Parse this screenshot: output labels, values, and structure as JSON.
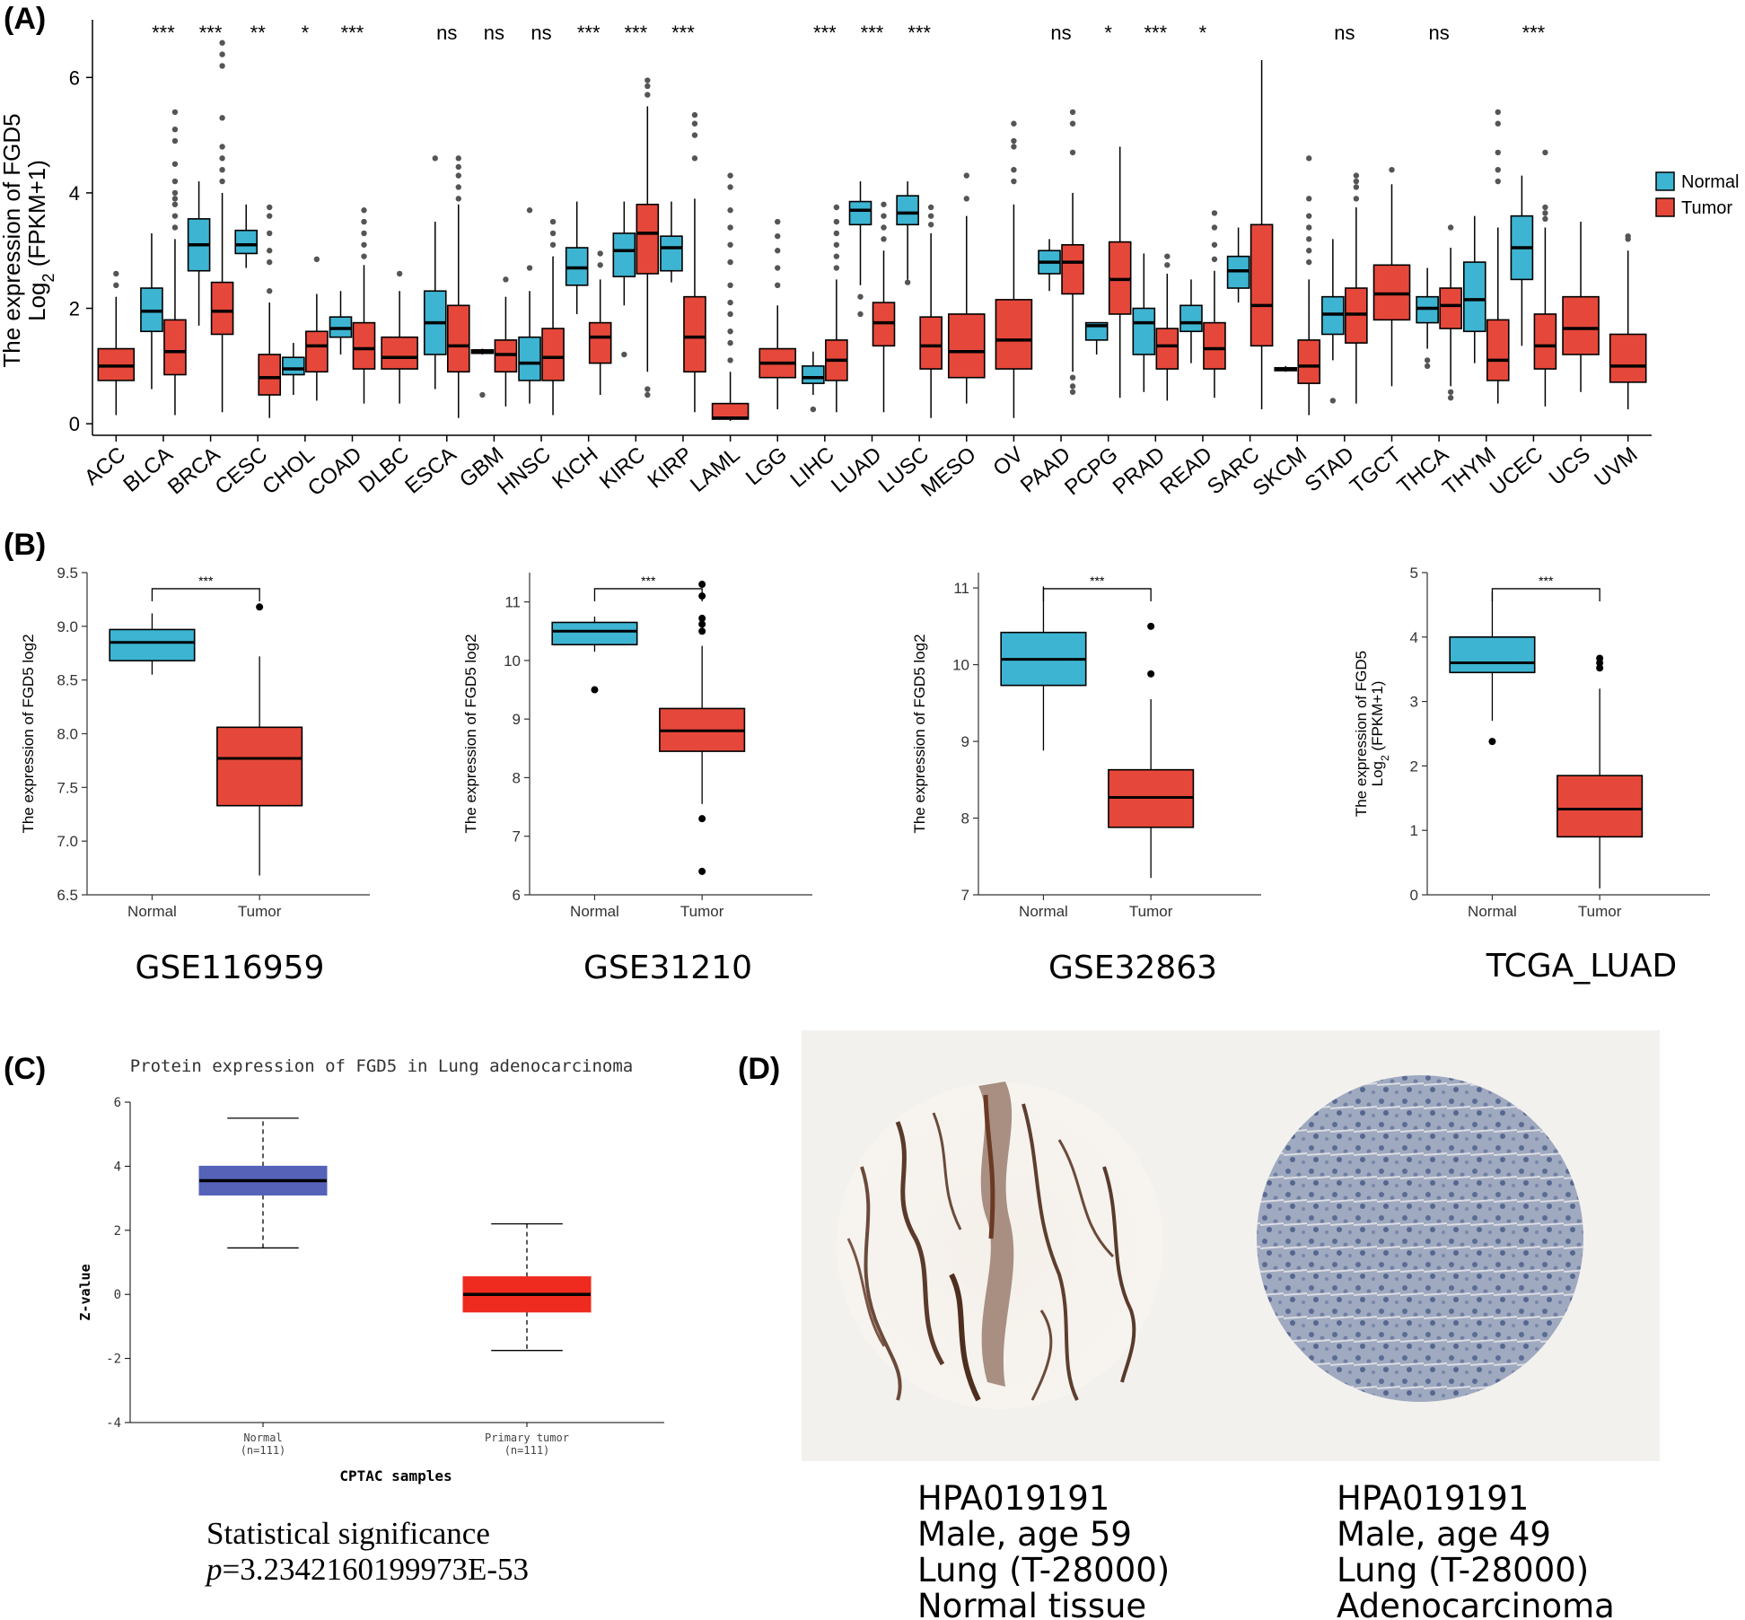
{
  "panels": {
    "A": "(A)",
    "B": "(B)",
    "C": "(C)",
    "D": "(D)"
  },
  "colors": {
    "normal": "#3db4d2",
    "tumor": "#e5483a",
    "cptac_normal": "#5562b8",
    "cptac_tumor": "#ee2b1e"
  },
  "chart_data": [
    {
      "id": "A",
      "type": "boxplot",
      "ylabel_line1": "The expression of FGD5",
      "ylabel_line2_main": "Log",
      "ylabel_line2_sub": "2",
      "ylabel_line2_rest": " (FPKM+1)",
      "ylim": [
        -0.2,
        7
      ],
      "yticks": [
        0,
        2,
        4,
        6
      ],
      "legend": {
        "items": [
          "Normal",
          "Tumor"
        ],
        "placement": "right"
      },
      "categories": [
        {
          "name": "ACC",
          "sig": "",
          "normal": null,
          "tumor": [
            0.15,
            0.75,
            1.0,
            1.3,
            2.2
          ],
          "tumor_out": [
            2.4,
            2.6
          ]
        },
        {
          "name": "BLCA",
          "sig": "***",
          "normal": [
            0.6,
            1.6,
            1.95,
            2.35,
            3.3
          ],
          "normal_out": [],
          "tumor": [
            0.15,
            0.85,
            1.25,
            1.8,
            3.2
          ],
          "tumor_out": [
            3.4,
            3.6,
            3.8,
            3.9,
            4.0,
            4.2,
            4.5,
            4.9,
            5.1,
            5.4
          ]
        },
        {
          "name": "BRCA",
          "sig": "***",
          "normal": [
            1.7,
            2.65,
            3.1,
            3.55,
            4.2
          ],
          "normal_out": [],
          "tumor": [
            0.2,
            1.55,
            1.95,
            2.45,
            4.0
          ],
          "tumor_out": [
            4.2,
            4.4,
            4.6,
            4.8,
            5.3,
            6.2,
            6.4,
            6.6
          ]
        },
        {
          "name": "CESC",
          "sig": "**",
          "normal": [
            2.7,
            2.95,
            3.1,
            3.35,
            3.8
          ],
          "normal_out": [],
          "tumor": [
            0.1,
            0.5,
            0.8,
            1.2,
            2.1
          ],
          "tumor_out": [
            2.3,
            2.8,
            3.0,
            3.3,
            3.6,
            3.75
          ]
        },
        {
          "name": "CHOL",
          "sig": "*",
          "normal": [
            0.5,
            0.85,
            0.95,
            1.15,
            1.4
          ],
          "normal_out": [],
          "tumor": [
            0.4,
            0.9,
            1.35,
            1.6,
            2.25
          ],
          "tumor_out": [
            2.85
          ]
        },
        {
          "name": "COAD",
          "sig": "***",
          "normal": [
            1.2,
            1.5,
            1.65,
            1.85,
            2.3
          ],
          "normal_out": [],
          "tumor": [
            0.35,
            0.95,
            1.3,
            1.75,
            2.75
          ],
          "tumor_out": [
            2.9,
            3.1,
            3.3,
            3.5,
            3.7
          ]
        },
        {
          "name": "DLBC",
          "sig": "",
          "normal": null,
          "tumor": [
            0.35,
            0.95,
            1.15,
            1.5,
            2.3
          ],
          "tumor_out": [
            2.6
          ]
        },
        {
          "name": "ESCA",
          "sig": "ns",
          "normal": [
            0.6,
            1.2,
            1.75,
            2.3,
            3.5
          ],
          "normal_out": [
            4.6
          ],
          "tumor": [
            0.1,
            0.9,
            1.35,
            2.05,
            3.8
          ],
          "tumor_out": [
            3.9,
            4.1,
            4.3,
            4.45,
            4.6
          ]
        },
        {
          "name": "GBM",
          "sig": "ns",
          "normal": [
            1.2,
            1.22,
            1.25,
            1.28,
            1.3
          ],
          "normal_out": [
            0.5
          ],
          "tumor": [
            0.3,
            0.9,
            1.2,
            1.45,
            2.2
          ],
          "tumor_out": [
            2.5
          ]
        },
        {
          "name": "HNSC",
          "sig": "ns",
          "normal": [
            0.35,
            0.75,
            1.05,
            1.5,
            2.3
          ],
          "normal_out": [
            2.7,
            3.7
          ],
          "tumor": [
            0.15,
            0.75,
            1.15,
            1.65,
            2.9
          ],
          "tumor_out": [
            3.1,
            3.3,
            3.5
          ]
        },
        {
          "name": "KICH",
          "sig": "***",
          "normal": [
            1.9,
            2.4,
            2.7,
            3.05,
            3.85
          ],
          "normal_out": [],
          "tumor": [
            0.5,
            1.05,
            1.5,
            1.75,
            2.5
          ],
          "tumor_out": [
            2.75,
            2.95
          ]
        },
        {
          "name": "KIRC",
          "sig": "***",
          "normal": [
            2.05,
            2.55,
            3.0,
            3.3,
            3.85
          ],
          "normal_out": [
            1.2
          ],
          "tumor": [
            0.9,
            2.6,
            3.3,
            3.8,
            5.5
          ],
          "tumor_out": [
            0.5,
            0.6,
            5.7,
            5.85,
            5.95
          ]
        },
        {
          "name": "KIRP",
          "sig": "***",
          "normal": [
            2.45,
            2.65,
            3.05,
            3.25,
            3.85
          ],
          "normal_out": [],
          "tumor": [
            0.2,
            0.9,
            1.5,
            2.2,
            3.9
          ],
          "tumor_out": [
            4.6,
            5.0,
            5.2,
            5.35
          ]
        },
        {
          "name": "LAML",
          "sig": "",
          "normal": null,
          "tumor": [
            0.05,
            0.08,
            0.1,
            0.35,
            0.9
          ],
          "tumor_out": [
            1.1,
            1.4,
            1.6,
            1.9,
            2.1,
            2.4,
            2.8,
            3.1,
            3.4,
            3.7,
            4.1,
            4.3
          ]
        },
        {
          "name": "LGG",
          "sig": "",
          "normal": null,
          "tumor": [
            0.25,
            0.8,
            1.05,
            1.3,
            2.05
          ],
          "tumor_out": [
            2.4,
            2.7,
            3.0,
            3.25,
            3.5
          ]
        },
        {
          "name": "LIHC",
          "sig": "***",
          "normal": [
            0.5,
            0.7,
            0.8,
            1.0,
            1.25
          ],
          "normal_out": [
            0.25
          ],
          "tumor": [
            0.2,
            0.75,
            1.1,
            1.45,
            2.5
          ],
          "tumor_out": [
            2.7,
            2.9,
            3.1,
            3.3,
            3.5,
            3.75
          ]
        },
        {
          "name": "LUAD",
          "sig": "***",
          "normal": [
            2.4,
            3.45,
            3.7,
            3.85,
            4.2
          ],
          "normal_out": [
            1.9,
            2.2
          ],
          "tumor": [
            0.2,
            1.35,
            1.75,
            2.1,
            3.0
          ],
          "tumor_out": [
            3.2,
            3.4,
            3.6,
            3.8
          ]
        },
        {
          "name": "LUSC",
          "sig": "***",
          "normal": [
            2.5,
            3.45,
            3.65,
            3.95,
            4.2
          ],
          "normal_out": [
            2.45
          ],
          "tumor": [
            0.1,
            0.95,
            1.35,
            1.85,
            3.3
          ],
          "tumor_out": [
            3.45,
            3.6,
            3.75
          ]
        },
        {
          "name": "MESO",
          "sig": "",
          "normal": null,
          "tumor": [
            0.35,
            0.8,
            1.25,
            1.9,
            3.6
          ],
          "tumor_out": [
            3.9,
            4.3
          ]
        },
        {
          "name": "OV",
          "sig": "",
          "normal": null,
          "tumor": [
            0.1,
            0.95,
            1.45,
            2.15,
            3.8
          ],
          "tumor_out": [
            4.2,
            4.4,
            4.8,
            4.9,
            5.2
          ]
        },
        {
          "name": "PAAD",
          "sig": "ns",
          "normal": [
            2.3,
            2.6,
            2.8,
            3.0,
            3.2
          ],
          "normal_out": [],
          "tumor": [
            0.9,
            2.25,
            2.8,
            3.1,
            4.0
          ],
          "tumor_out": [
            0.55,
            0.65,
            0.8,
            4.7,
            5.2,
            5.4
          ]
        },
        {
          "name": "PCPG",
          "sig": "*",
          "normal": [
            1.2,
            1.45,
            1.7,
            1.75,
            1.75
          ],
          "normal_out": [],
          "tumor": [
            0.45,
            1.9,
            2.5,
            3.15,
            4.8
          ],
          "tumor_out": []
        },
        {
          "name": "PRAD",
          "sig": "***",
          "normal": [
            0.55,
            1.2,
            1.75,
            2.0,
            2.95
          ],
          "normal_out": [],
          "tumor": [
            0.4,
            0.95,
            1.35,
            1.65,
            2.6
          ],
          "tumor_out": [
            2.75,
            2.9
          ]
        },
        {
          "name": "READ",
          "sig": "*",
          "normal": [
            1.05,
            1.6,
            1.75,
            2.05,
            2.5
          ],
          "normal_out": [],
          "tumor": [
            0.45,
            0.95,
            1.3,
            1.75,
            2.65
          ],
          "tumor_out": [
            2.85,
            3.1,
            3.4,
            3.65
          ]
        },
        {
          "name": "SARC",
          "sig": "",
          "normal": [
            2.1,
            2.35,
            2.65,
            2.9,
            3.4
          ],
          "normal_out": [],
          "tumor": [
            0.25,
            1.35,
            2.05,
            3.45,
            6.3
          ],
          "tumor_out": []
        },
        {
          "name": "SKCM",
          "sig": "",
          "normal": [
            0.9,
            0.92,
            0.95,
            0.97,
            1.0
          ],
          "normal_out": [],
          "tumor": [
            0.15,
            0.7,
            1.0,
            1.45,
            2.5
          ],
          "tumor_out": [
            2.8,
            3.0,
            3.2,
            3.4,
            3.6,
            3.9,
            4.6
          ]
        },
        {
          "name": "STAD",
          "sig": "ns",
          "normal": [
            1.1,
            1.55,
            1.9,
            2.2,
            3.2
          ],
          "normal_out": [
            0.4
          ],
          "tumor": [
            0.35,
            1.4,
            1.9,
            2.35,
            3.75
          ],
          "tumor_out": [
            3.9,
            4.1,
            4.2,
            4.3
          ]
        },
        {
          "name": "TGCT",
          "sig": "",
          "normal": null,
          "tumor": [
            0.65,
            1.8,
            2.25,
            2.75,
            4.15
          ],
          "tumor_out": [
            4.4
          ]
        },
        {
          "name": "THCA",
          "sig": "ns",
          "normal": [
            1.3,
            1.75,
            2.0,
            2.2,
            2.7
          ],
          "normal_out": [
            1.0,
            1.1
          ],
          "tumor": [
            0.65,
            1.65,
            2.05,
            2.35,
            3.05
          ],
          "tumor_out": [
            0.45,
            0.55,
            3.4
          ]
        },
        {
          "name": "THYM",
          "sig": "",
          "normal": [
            1.05,
            1.6,
            2.15,
            2.8,
            3.6
          ],
          "normal_out": [],
          "tumor": [
            0.35,
            0.75,
            1.1,
            1.8,
            3.4
          ],
          "tumor_out": [
            4.2,
            4.4,
            4.7,
            5.2,
            5.4
          ]
        },
        {
          "name": "UCEC",
          "sig": "***",
          "normal": [
            1.35,
            2.5,
            3.05,
            3.6,
            4.3
          ],
          "normal_out": [],
          "tumor": [
            0.3,
            0.95,
            1.35,
            1.9,
            3.4
          ],
          "tumor_out": [
            3.55,
            3.65,
            3.75,
            4.7
          ]
        },
        {
          "name": "UCS",
          "sig": "",
          "normal": null,
          "tumor": [
            0.55,
            1.2,
            1.65,
            2.2,
            3.5
          ],
          "tumor_out": []
        },
        {
          "name": "UVM",
          "sig": "",
          "normal": null,
          "tumor": [
            0.25,
            0.72,
            1.0,
            1.55,
            3.0
          ],
          "tumor_out": [
            3.2,
            3.25
          ]
        }
      ]
    },
    {
      "id": "B1",
      "type": "boxplot",
      "dataset": "GSE116959",
      "ylabel": "The expression of FGD5 log2",
      "ylim": [
        6.5,
        9.5
      ],
      "yticks": [
        "6.5",
        "7.0",
        "7.5",
        "8.0",
        "8.5",
        "9.0",
        "9.5"
      ],
      "categories": [
        "Normal",
        "Tumor"
      ],
      "normal": [
        8.55,
        8.68,
        8.85,
        8.97,
        9.12
      ],
      "normal_out": [],
      "tumor": [
        6.68,
        7.33,
        7.77,
        8.06,
        8.72
      ],
      "tumor_out": [
        9.18
      ],
      "sig": "***"
    },
    {
      "id": "B2",
      "type": "boxplot",
      "dataset": "GSE31210",
      "ylabel": "The expression of FGD5 log2",
      "ylim": [
        6,
        11.5
      ],
      "yticks": [
        "6",
        "7",
        "8",
        "9",
        "10",
        "11"
      ],
      "categories": [
        "Normal",
        "Tumor"
      ],
      "normal": [
        10.15,
        10.27,
        10.5,
        10.65,
        10.75
      ],
      "normal_out": [
        9.5
      ],
      "tumor": [
        7.55,
        8.45,
        8.8,
        9.18,
        10.25
      ],
      "tumor_out": [
        6.4,
        7.3,
        10.5,
        10.62,
        10.72,
        11.1,
        11.3
      ],
      "sig": "***"
    },
    {
      "id": "B3",
      "type": "boxplot",
      "dataset": "GSE32863",
      "ylabel": "The expression of FGD5 log2",
      "ylim": [
        7,
        11.2
      ],
      "yticks": [
        "7",
        "8",
        "9",
        "10",
        "11"
      ],
      "categories": [
        "Normal",
        "Tumor"
      ],
      "normal": [
        8.88,
        9.73,
        10.07,
        10.42,
        11.02
      ],
      "normal_out": [],
      "tumor": [
        7.22,
        7.88,
        8.27,
        8.63,
        9.55
      ],
      "tumor_out": [
        9.88,
        10.5
      ],
      "sig": "***"
    },
    {
      "id": "B4",
      "type": "boxplot",
      "dataset": "TCGA_LUAD",
      "ylabel_line1": "The expression of FGD5",
      "ylabel_line2_main": "Log",
      "ylabel_line2_sub": "2",
      "ylabel_line2_rest": " (FPKM+1)",
      "ylim": [
        0,
        5
      ],
      "yticks": [
        "0",
        "1",
        "2",
        "3",
        "4",
        "5"
      ],
      "categories": [
        "Normal",
        "Tumor"
      ],
      "normal": [
        2.7,
        3.45,
        3.6,
        4.0,
        4.7
      ],
      "normal_out": [
        2.38
      ],
      "tumor": [
        0.1,
        0.9,
        1.33,
        1.85,
        3.2
      ],
      "tumor_out": [
        3.52,
        3.6,
        3.67
      ],
      "sig": "***"
    },
    {
      "id": "C",
      "type": "boxplot",
      "title": "Protein expression of FGD5 in Lung adenocarcinoma",
      "ylabel": "Z-value",
      "xlabel": "CPTAC samples",
      "ylim": [
        -4,
        6
      ],
      "yticks": [
        "6",
        "4",
        "2",
        "0",
        "-2",
        "-4"
      ],
      "categories": [
        {
          "name": "Normal",
          "n": "(n=111)",
          "box": [
            1.45,
            3.1,
            3.55,
            4.0,
            5.5
          ]
        },
        {
          "name": "Primary tumor",
          "n": "(n=111)",
          "box": [
            -1.75,
            -0.55,
            0.0,
            0.55,
            2.2
          ]
        }
      ],
      "stat_title": "Statistical significance",
      "stat_p_italic": "p",
      "stat_p_value": "=3.2342160199973E-53"
    }
  ],
  "ihc": {
    "left": {
      "line1": "HPA019191",
      "line2": "Male, age 59",
      "line3": "Lung (T-28000)",
      "line4": "Normal tissue"
    },
    "right": {
      "line1": "HPA019191",
      "line2": "Male, age 49",
      "line3": "Lung (T-28000)",
      "line4": "Adenocarcinoma"
    }
  }
}
